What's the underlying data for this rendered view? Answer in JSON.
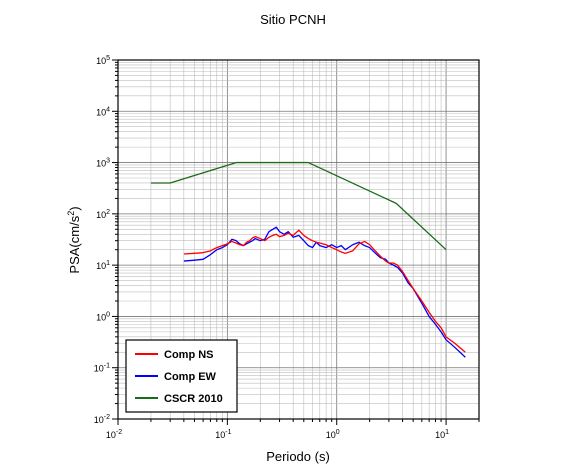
{
  "chart_data": {
    "type": "line",
    "title": "Sitio PCNH",
    "xlabel": "Periodo (s)",
    "ylabel_base": "PSA(cm/s",
    "ylabel_exp": "2",
    "ylabel_close": ")",
    "xscale": "log",
    "yscale": "log",
    "xlim": [
      0.01,
      20
    ],
    "ylim": [
      0.01,
      100000
    ],
    "grid": true,
    "legend_position": "bottom-left",
    "x_ticks": [
      {
        "value": 0.01,
        "base": "10",
        "exp": "-2"
      },
      {
        "value": 0.1,
        "base": "10",
        "exp": "-1"
      },
      {
        "value": 1,
        "base": "10",
        "exp": "0"
      },
      {
        "value": 10,
        "base": "10",
        "exp": "1"
      }
    ],
    "y_ticks": [
      {
        "value": 0.01,
        "base": "10",
        "exp": "-2"
      },
      {
        "value": 0.1,
        "base": "10",
        "exp": "-1"
      },
      {
        "value": 1,
        "base": "10",
        "exp": "0"
      },
      {
        "value": 10,
        "base": "10",
        "exp": "1"
      },
      {
        "value": 100,
        "base": "10",
        "exp": "2"
      },
      {
        "value": 1000,
        "base": "10",
        "exp": "3"
      },
      {
        "value": 10000,
        "base": "10",
        "exp": "4"
      },
      {
        "value": 100000,
        "base": "10",
        "exp": "5"
      }
    ],
    "series": [
      {
        "name": "Comp NS",
        "color": "#ff0000",
        "x": [
          0.04,
          0.05,
          0.06,
          0.07,
          0.08,
          0.09,
          0.1,
          0.11,
          0.12,
          0.13,
          0.14,
          0.15,
          0.16,
          0.17,
          0.18,
          0.2,
          0.22,
          0.24,
          0.26,
          0.28,
          0.3,
          0.33,
          0.36,
          0.4,
          0.45,
          0.5,
          0.55,
          0.6,
          0.65,
          0.7,
          0.8,
          0.9,
          1.0,
          1.1,
          1.2,
          1.4,
          1.6,
          1.8,
          2.0,
          2.2,
          2.5,
          2.8,
          3.0,
          3.3,
          3.6,
          4.0,
          4.5,
          5.0,
          6.0,
          7.0,
          8.0,
          9.0,
          10.0,
          12.0,
          15.0
        ],
        "y": [
          16.5,
          17,
          17.5,
          19,
          22,
          24,
          26,
          29,
          27,
          25,
          24,
          28,
          30,
          34,
          36,
          33,
          30,
          35,
          38,
          40,
          36,
          38,
          42,
          38,
          48,
          38,
          33,
          30,
          28,
          27,
          25,
          22,
          20,
          18,
          17,
          19,
          26,
          29,
          25,
          20,
          15,
          12,
          11,
          11,
          10,
          7.5,
          5,
          3.5,
          2,
          1.2,
          0.8,
          0.6,
          0.4,
          0.3,
          0.2
        ]
      },
      {
        "name": "Comp EW",
        "color": "#0000ff",
        "x": [
          0.04,
          0.05,
          0.06,
          0.07,
          0.08,
          0.09,
          0.1,
          0.11,
          0.12,
          0.13,
          0.14,
          0.15,
          0.16,
          0.17,
          0.18,
          0.2,
          0.22,
          0.24,
          0.26,
          0.28,
          0.3,
          0.33,
          0.36,
          0.4,
          0.45,
          0.5,
          0.55,
          0.6,
          0.65,
          0.7,
          0.8,
          0.9,
          1.0,
          1.1,
          1.2,
          1.4,
          1.6,
          1.8,
          2.0,
          2.2,
          2.5,
          2.8,
          3.0,
          3.3,
          3.6,
          4.0,
          4.5,
          5.0,
          6.0,
          7.0,
          8.0,
          9.0,
          10.0,
          12.0,
          15.0
        ],
        "y": [
          12,
          12.5,
          13,
          16,
          20,
          22,
          25,
          32,
          30,
          26,
          24,
          26,
          28,
          30,
          33,
          30,
          32,
          45,
          50,
          55,
          45,
          40,
          45,
          35,
          38,
          30,
          24,
          22,
          28,
          24,
          22,
          25,
          22,
          24,
          20,
          25,
          28,
          24,
          22,
          18,
          14,
          13,
          11,
          10,
          9,
          7,
          4.5,
          3.5,
          1.8,
          1.0,
          0.7,
          0.5,
          0.35,
          0.25,
          0.16
        ]
      },
      {
        "name": "CSCR 2010",
        "color": "#1a6b1a",
        "x": [
          0.02,
          0.03,
          0.12,
          0.55,
          3.5,
          10
        ],
        "y": [
          400,
          400,
          1000,
          1000,
          160,
          20
        ]
      }
    ]
  }
}
